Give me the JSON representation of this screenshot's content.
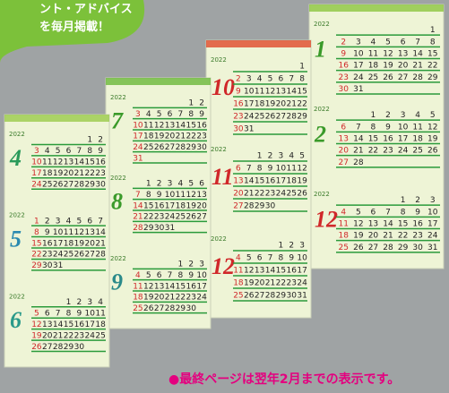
{
  "bubble_text": [
    "ント・アドバイス",
    "を毎月掲載！"
  ],
  "sheets": [
    {
      "months": [
        {
          "month": "1",
          "year": "2022",
          "color": "#3a9a2a",
          "weeks": [
            [
              null,
              null,
              null,
              null,
              null,
              null,
              1
            ],
            [
              2,
              3,
              4,
              5,
              6,
              7,
              8
            ],
            [
              9,
              10,
              11,
              12,
              13,
              14,
              15
            ],
            [
              16,
              17,
              18,
              19,
              20,
              21,
              22
            ],
            [
              23,
              24,
              25,
              26,
              27,
              28,
              29
            ],
            [
              30,
              31,
              null,
              null,
              null,
              null,
              null
            ]
          ]
        },
        {
          "month": "2",
          "year": "2022",
          "color": "#3a9a2a",
          "weeks": [
            [
              null,
              null,
              1,
              2,
              3,
              4,
              5
            ],
            [
              6,
              7,
              8,
              9,
              10,
              11,
              12
            ],
            [
              13,
              14,
              15,
              16,
              17,
              18,
              19
            ],
            [
              20,
              21,
              22,
              23,
              24,
              25,
              26
            ],
            [
              27,
              28,
              null,
              null,
              null,
              null,
              null
            ]
          ]
        },
        {
          "month": "12",
          "year": "2022",
          "color": "#d0282a",
          "weeks": [
            [
              null,
              null,
              null,
              null,
              1,
              2,
              3
            ],
            [
              4,
              5,
              6,
              7,
              8,
              9,
              10
            ],
            [
              11,
              12,
              13,
              14,
              15,
              16,
              17
            ],
            [
              18,
              19,
              20,
              21,
              22,
              23,
              24
            ],
            [
              25,
              26,
              27,
              28,
              29,
              30,
              31
            ]
          ]
        }
      ]
    },
    {
      "months": [
        {
          "month": "10",
          "year": "2022",
          "color": "#d0282a",
          "weeks": [
            [
              null,
              null,
              null,
              null,
              null,
              null,
              1
            ],
            [
              2,
              3,
              4,
              5,
              6,
              7,
              8
            ],
            [
              9,
              10,
              11,
              12,
              13,
              14,
              15
            ],
            [
              16,
              17,
              18,
              19,
              20,
              21,
              22
            ],
            [
              23,
              24,
              25,
              26,
              27,
              28,
              29
            ],
            [
              30,
              31,
              null,
              null,
              null,
              null,
              null
            ]
          ]
        },
        {
          "month": "11",
          "year": "2022",
          "color": "#d0282a",
          "weeks": [
            [
              null,
              null,
              1,
              2,
              3,
              4,
              5
            ],
            [
              6,
              7,
              8,
              9,
              10,
              11,
              12
            ],
            [
              13,
              14,
              15,
              16,
              17,
              18,
              19
            ],
            [
              20,
              21,
              22,
              23,
              24,
              25,
              26
            ],
            [
              27,
              28,
              29,
              30,
              null,
              null,
              null
            ]
          ]
        },
        {
          "month": "12",
          "year": "2022",
          "color": "#d0282a",
          "weeks": [
            [
              null,
              null,
              null,
              null,
              1,
              2,
              3
            ],
            [
              4,
              5,
              6,
              7,
              8,
              9,
              10
            ],
            [
              11,
              12,
              13,
              14,
              15,
              16,
              17
            ],
            [
              18,
              19,
              20,
              21,
              22,
              23,
              24
            ],
            [
              25,
              26,
              27,
              28,
              29,
              30,
              31
            ]
          ]
        }
      ]
    },
    {
      "months": [
        {
          "month": "7",
          "year": "2022",
          "color": "#3a9a2a",
          "weeks": [
            [
              null,
              null,
              null,
              null,
              null,
              1,
              2
            ],
            [
              3,
              4,
              5,
              6,
              7,
              8,
              9
            ],
            [
              10,
              11,
              12,
              13,
              14,
              15,
              16
            ],
            [
              17,
              18,
              19,
              20,
              21,
              22,
              23
            ],
            [
              24,
              25,
              26,
              27,
              28,
              29,
              30
            ],
            [
              31,
              null,
              null,
              null,
              null,
              null,
              null
            ]
          ]
        },
        {
          "month": "8",
          "year": "2022",
          "color": "#3a9a2a",
          "weeks": [
            [
              null,
              1,
              2,
              3,
              4,
              5,
              6
            ],
            [
              7,
              8,
              9,
              10,
              11,
              12,
              13
            ],
            [
              14,
              15,
              16,
              17,
              18,
              19,
              20
            ],
            [
              21,
              22,
              23,
              24,
              25,
              26,
              27
            ],
            [
              28,
              29,
              30,
              31,
              null,
              null,
              null
            ]
          ]
        },
        {
          "month": "9",
          "year": "2022",
          "color": "#2a8a8a",
          "weeks": [
            [
              null,
              null,
              null,
              null,
              1,
              2,
              3
            ],
            [
              4,
              5,
              6,
              7,
              8,
              9,
              10
            ],
            [
              11,
              12,
              13,
              14,
              15,
              16,
              17
            ],
            [
              18,
              19,
              20,
              21,
              22,
              23,
              24
            ],
            [
              25,
              26,
              27,
              28,
              29,
              30,
              null
            ]
          ]
        }
      ]
    },
    {
      "months": [
        {
          "month": "4",
          "year": "2022",
          "color": "#2a9a5a",
          "weeks": [
            [
              null,
              null,
              null,
              null,
              null,
              1,
              2
            ],
            [
              3,
              4,
              5,
              6,
              7,
              8,
              9
            ],
            [
              10,
              11,
              12,
              13,
              14,
              15,
              16
            ],
            [
              17,
              18,
              19,
              20,
              21,
              22,
              23
            ],
            [
              24,
              25,
              26,
              27,
              28,
              29,
              30
            ]
          ]
        },
        {
          "month": "5",
          "year": "2022",
          "color": "#2a8ab0",
          "weeks": [
            [
              1,
              2,
              3,
              4,
              5,
              6,
              7
            ],
            [
              8,
              9,
              10,
              11,
              12,
              13,
              14
            ],
            [
              15,
              16,
              17,
              18,
              19,
              20,
              21
            ],
            [
              22,
              23,
              24,
              25,
              26,
              27,
              28
            ],
            [
              29,
              30,
              31,
              null,
              null,
              null,
              null
            ]
          ]
        },
        {
          "month": "6",
          "year": "2022",
          "color": "#2a9a8a",
          "weeks": [
            [
              null,
              null,
              null,
              1,
              2,
              3,
              4
            ],
            [
              5,
              6,
              7,
              8,
              9,
              10,
              11
            ],
            [
              12,
              13,
              14,
              15,
              16,
              17,
              18
            ],
            [
              19,
              20,
              21,
              22,
              23,
              24,
              25
            ],
            [
              26,
              27,
              28,
              29,
              30,
              null,
              null
            ]
          ]
        }
      ]
    }
  ],
  "footnote": "●最終ページは翌年2月までの表示です。"
}
